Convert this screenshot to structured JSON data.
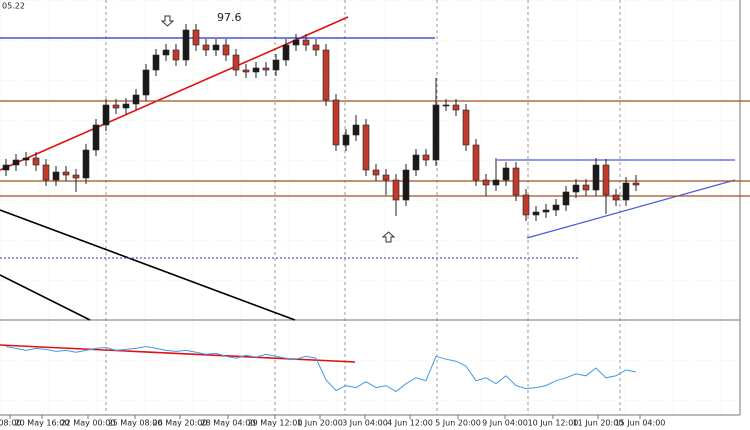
{
  "chart_data": {
    "type": "candlestick",
    "top_label": "05.22",
    "annotation": "97.6",
    "ylim": [
      0,
      320
    ],
    "xlim": [
      -0.6,
      74.4
    ],
    "bull_color": "#1a1a1a",
    "bear_color": "#c0392b",
    "open": [
      150,
      155,
      160,
      162,
      155,
      140,
      148,
      145,
      142,
      170,
      195,
      215,
      212,
      216,
      225,
      250,
      265,
      270,
      260,
      290,
      275,
      270,
      275,
      265,
      250,
      248,
      252,
      250,
      260,
      275,
      280,
      275,
      270,
      220,
      175,
      185,
      195,
      150,
      145,
      140,
      120,
      150,
      165,
      160,
      215,
      215,
      210,
      175,
      140,
      135,
      140,
      152,
      125,
      105,
      108,
      110,
      115,
      128,
      135,
      130,
      155,
      125,
      120,
      137
    ],
    "high": [
      161,
      166,
      168,
      168,
      161,
      154,
      154,
      151,
      176,
      201,
      221,
      221,
      222,
      231,
      256,
      271,
      276,
      276,
      296,
      296,
      281,
      281,
      281,
      271,
      256,
      258,
      258,
      266,
      281,
      286,
      286,
      281,
      276,
      226,
      191,
      205,
      201,
      156,
      151,
      146,
      156,
      171,
      171,
      242,
      221,
      221,
      216,
      181,
      146,
      162,
      158,
      158,
      131,
      114,
      116,
      121,
      134,
      141,
      141,
      162,
      161,
      131,
      143,
      145
    ],
    "low": [
      144,
      149,
      154,
      149,
      134,
      134,
      139,
      128,
      136,
      164,
      189,
      206,
      206,
      210,
      219,
      244,
      259,
      254,
      254,
      269,
      264,
      264,
      259,
      244,
      242,
      242,
      244,
      244,
      254,
      269,
      269,
      264,
      214,
      169,
      169,
      179,
      144,
      139,
      125,
      104,
      114,
      144,
      154,
      154,
      209,
      204,
      169,
      134,
      124,
      129,
      134,
      119,
      99,
      99,
      102,
      104,
      109,
      122,
      124,
      124,
      106,
      114,
      114,
      129
    ],
    "close": [
      155,
      160,
      162,
      155,
      140,
      148,
      145,
      142,
      170,
      195,
      215,
      212,
      216,
      225,
      250,
      265,
      270,
      260,
      290,
      275,
      270,
      275,
      265,
      250,
      248,
      252,
      250,
      260,
      275,
      280,
      275,
      270,
      220,
      175,
      185,
      195,
      150,
      145,
      140,
      120,
      150,
      165,
      160,
      215,
      215,
      210,
      175,
      140,
      135,
      140,
      152,
      125,
      105,
      108,
      110,
      115,
      128,
      135,
      130,
      155,
      125,
      120,
      137,
      135
    ],
    "levels": [
      {
        "value": 282,
        "color": "#2030d0",
        "style": "solid"
      },
      {
        "value": 219,
        "color": "#a0521e",
        "style": "solid"
      },
      {
        "value": 160,
        "color": "#4a5ae0",
        "style": "solid"
      },
      {
        "value": 139,
        "color": "#a0521e",
        "style": "solid"
      },
      {
        "value": 124,
        "color": "#a0521e",
        "style": "solid"
      },
      {
        "value": 62,
        "color": "#4a5ae0",
        "style": "dotted"
      }
    ],
    "xticks": [
      {
        "value": 0.4,
        "label": "08:00"
      },
      {
        "value": 3.6,
        "label": "20 May 16:00"
      },
      {
        "value": 8.2,
        "label": "22 May 00:00"
      },
      {
        "value": 12.9,
        "label": "25 May 08:00"
      },
      {
        "value": 17.4,
        "label": "26 May 20:00"
      },
      {
        "value": 22.2,
        "label": "28 May 04:00"
      },
      {
        "value": 26.9,
        "label": "29 May 12:00"
      },
      {
        "value": 31.4,
        "label": "1 Jun 20:00"
      },
      {
        "value": 35.9,
        "label": "3 Jun 04:00"
      },
      {
        "value": 40.4,
        "label": "4 Jun 12:00"
      },
      {
        "value": 45.2,
        "label": "5 Jun 20:00"
      },
      {
        "value": 49.9,
        "label": "9 Jun 04:00"
      },
      {
        "value": 54.7,
        "label": "10 Jun 12:00"
      },
      {
        "value": 59.2,
        "label": "11 Jun 20:00"
      },
      {
        "value": 63.4,
        "label": "15 Jun 04:00"
      }
    ],
    "indicator": {
      "color": "#3d9be9",
      "ylim": [
        0,
        95
      ],
      "values": [
        70,
        68,
        66,
        68,
        67,
        65,
        66,
        64,
        66,
        68,
        69,
        66,
        67,
        68,
        70,
        68,
        66,
        65,
        66,
        64,
        62,
        63,
        60,
        58,
        61,
        59,
        62,
        60,
        58,
        57,
        60,
        58,
        36,
        25,
        30,
        28,
        34,
        28,
        30,
        24,
        32,
        38,
        35,
        60,
        57,
        55,
        50,
        35,
        38,
        32,
        40,
        30,
        27,
        28,
        30,
        35,
        38,
        42,
        40,
        48,
        38,
        40,
        46,
        44
      ]
    }
  }
}
